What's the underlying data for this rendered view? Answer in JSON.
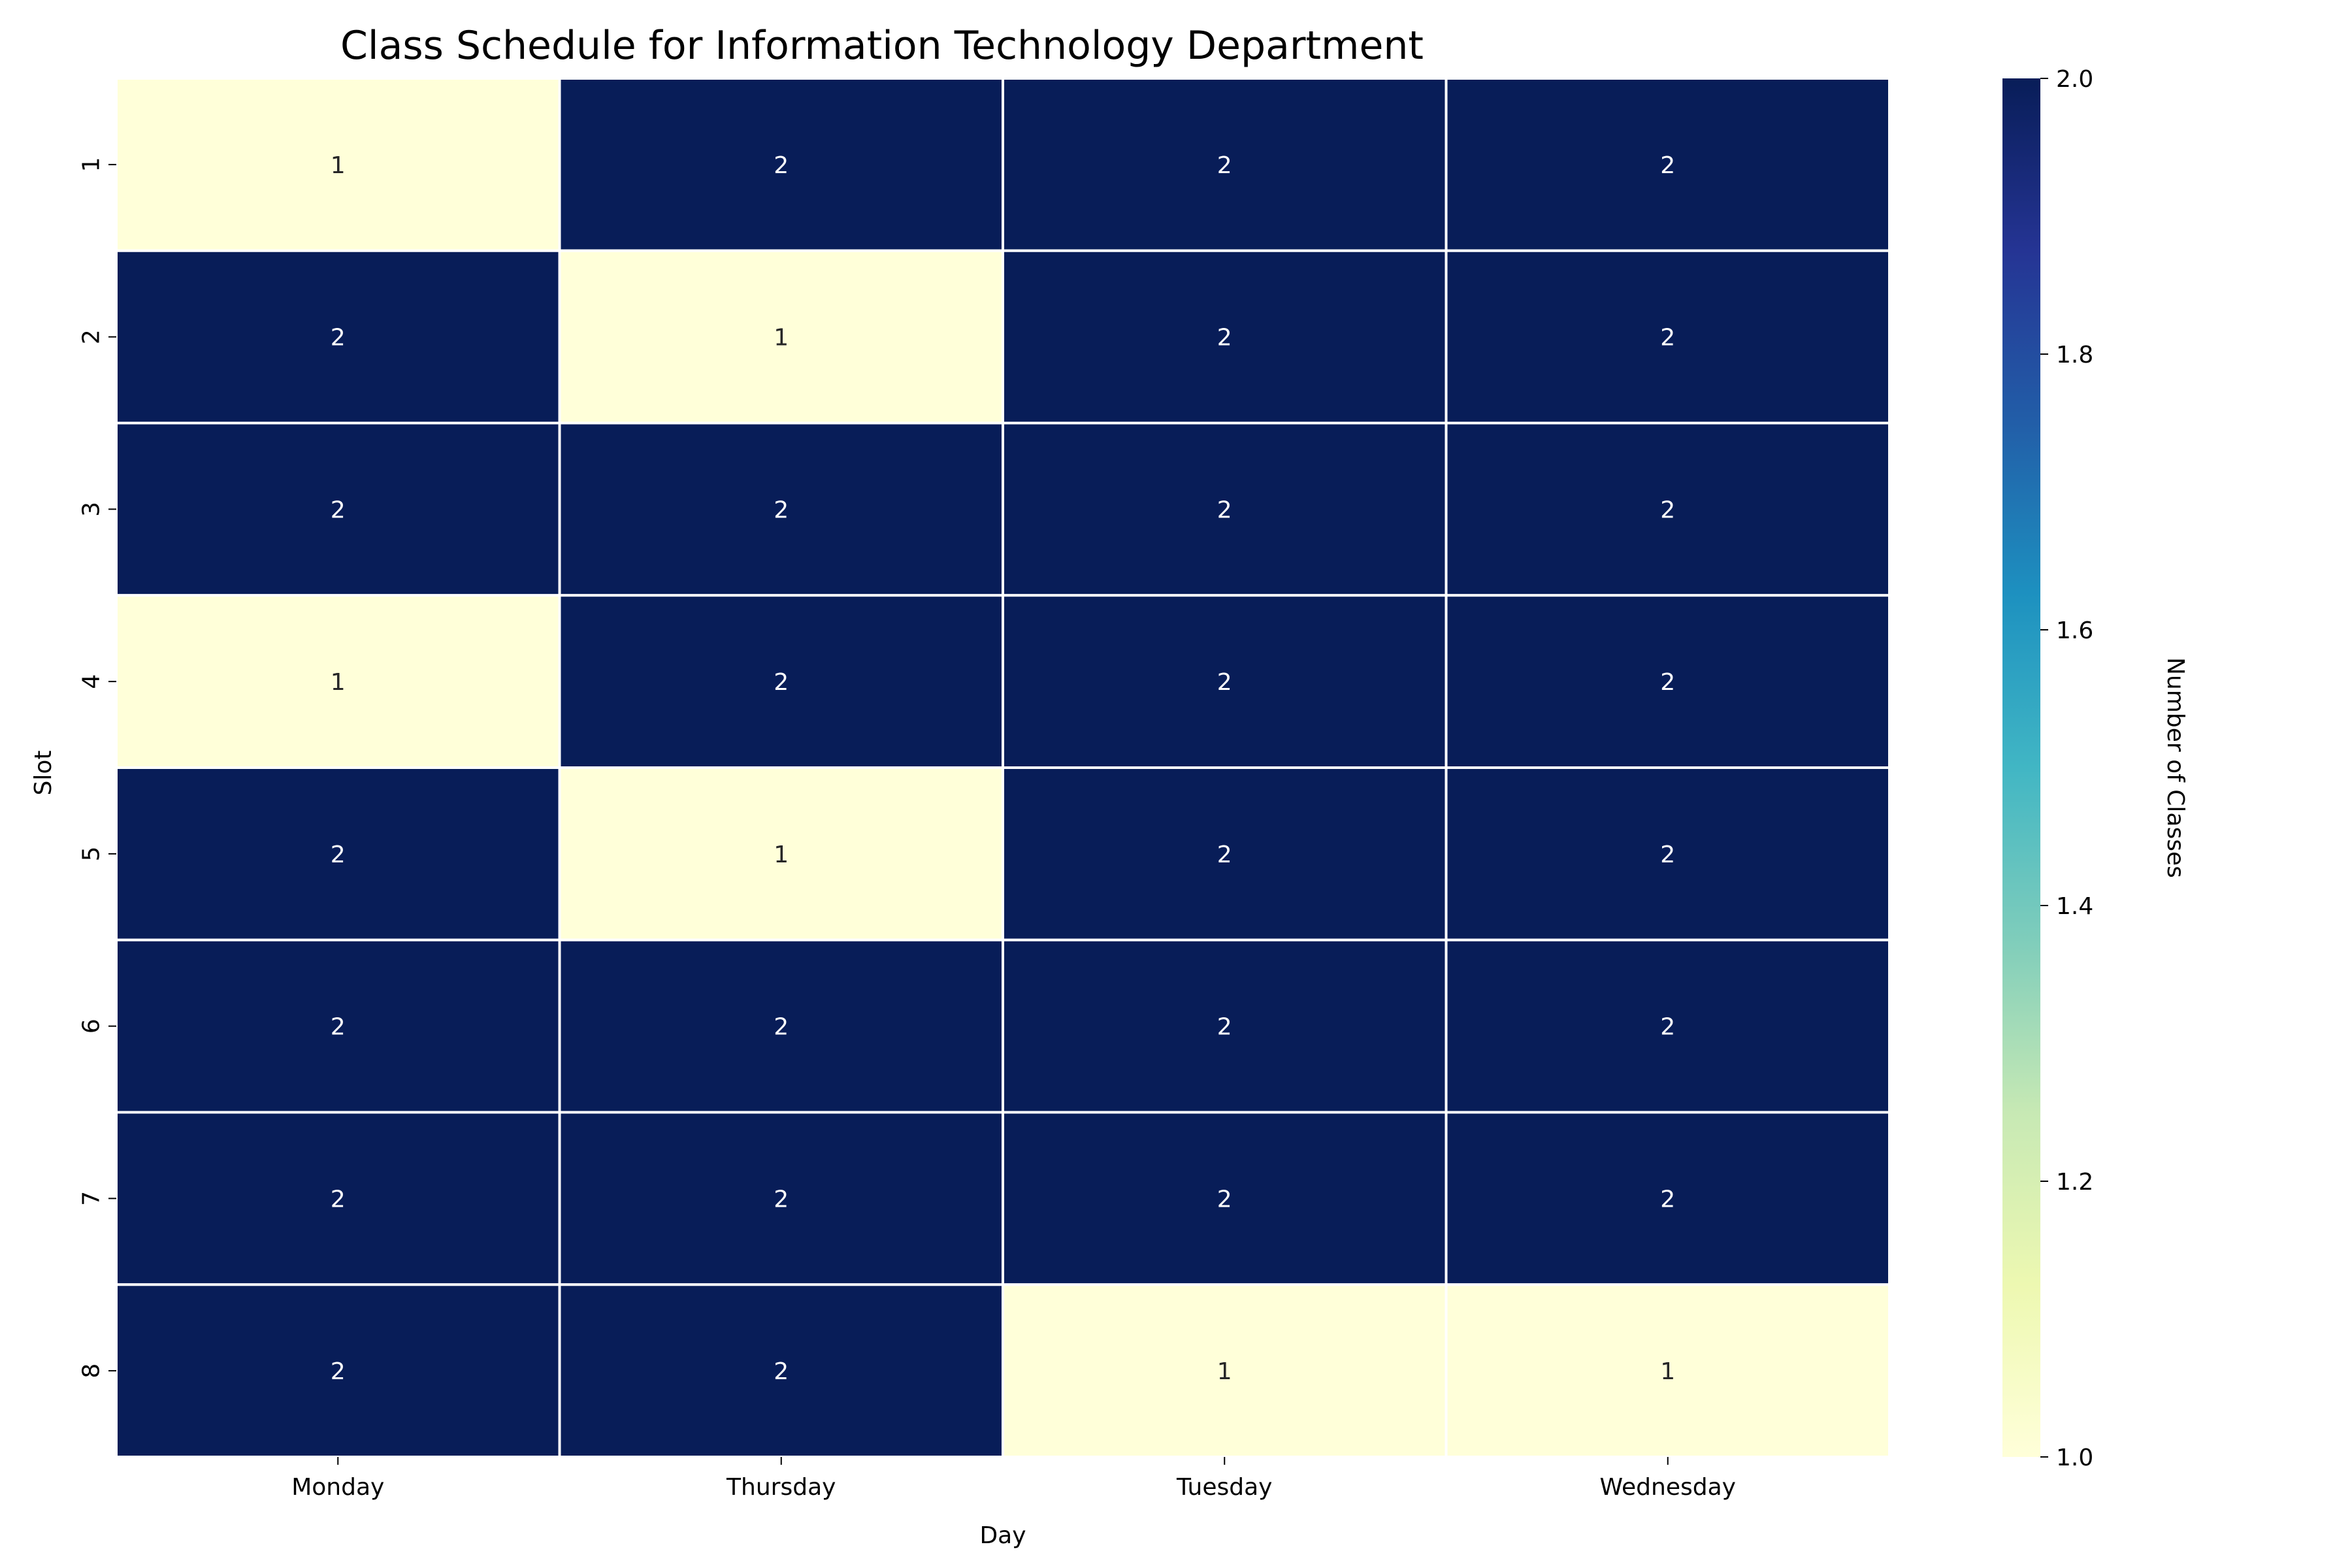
{
  "chart_data": {
    "type": "heatmap",
    "title": "Class Schedule for Information Technology Department",
    "xlabel": "Day",
    "ylabel": "Slot",
    "x_categories": [
      "Monday",
      "Thursday",
      "Tuesday",
      "Wednesday"
    ],
    "y_categories": [
      "1",
      "2",
      "3",
      "4",
      "5",
      "6",
      "7",
      "8"
    ],
    "values": [
      [
        1,
        2,
        2,
        2
      ],
      [
        2,
        1,
        2,
        2
      ],
      [
        2,
        2,
        2,
        2
      ],
      [
        1,
        2,
        2,
        2
      ],
      [
        2,
        1,
        2,
        2
      ],
      [
        2,
        2,
        2,
        2
      ],
      [
        2,
        2,
        2,
        2
      ],
      [
        2,
        2,
        1,
        1
      ]
    ],
    "colorbar": {
      "label": "Number of Classes",
      "range": [
        1.0,
        2.0
      ],
      "ticks": [
        "1.0",
        "1.2",
        "1.4",
        "1.6",
        "1.8",
        "2.0"
      ],
      "colormap": "YlGnBu",
      "low_color": "#ffffd9",
      "high_color": "#081d58"
    },
    "annotation_color_dark_cell": "#ffffff",
    "annotation_color_light_cell": "#262626"
  }
}
